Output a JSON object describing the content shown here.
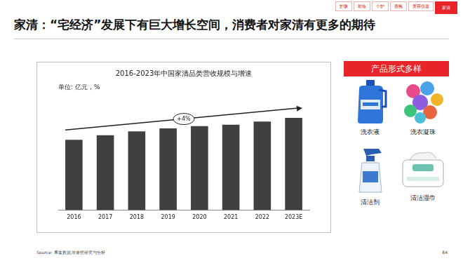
{
  "page": {
    "tabs": [
      "护肤",
      "彩妆",
      "个护",
      "香氛",
      "美容仪器",
      "家清"
    ],
    "active_tab": "家清",
    "heading": "家清：“宅经济”发展下有巨大增长空间，消费者对家清有更多的期待",
    "panel_title": "产品形式多样",
    "products": [
      "洗衣液",
      "洗衣凝珠",
      "清洁剂",
      "清洁湿巾"
    ],
    "source": "Source: 果集数据,埃睿哲研究与分析",
    "page_number": "84"
  },
  "chart_data": {
    "type": "bar",
    "title": "2016-2023年中国家清品类营收规模与增速",
    "subtitle": "单位: 亿元，%",
    "categories": [
      "2016",
      "2017",
      "2018",
      "2019",
      "2020",
      "2021",
      "2022",
      "2023E"
    ],
    "values": [
      930,
      990,
      1040,
      1080,
      1110,
      1130,
      1170,
      1220
    ],
    "color": "#404040",
    "ylim": [
      0,
      1500
    ],
    "tick_labels": "x",
    "grid": false,
    "annotations": [
      "+4%"
    ]
  }
}
